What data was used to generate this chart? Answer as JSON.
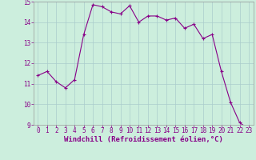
{
  "x": [
    0,
    1,
    2,
    3,
    4,
    5,
    6,
    7,
    8,
    9,
    10,
    11,
    12,
    13,
    14,
    15,
    16,
    17,
    18,
    19,
    20,
    21,
    22,
    23
  ],
  "y": [
    11.4,
    11.6,
    11.1,
    10.8,
    11.2,
    13.4,
    14.85,
    14.75,
    14.5,
    14.4,
    14.8,
    14.0,
    14.3,
    14.3,
    14.1,
    14.2,
    13.7,
    13.9,
    13.2,
    13.4,
    11.6,
    10.1,
    9.1,
    8.8
  ],
  "line_color": "#880088",
  "marker_color": "#880088",
  "bg_color": "#cceedd",
  "grid_color": "#aacccc",
  "xlabel": "Windchill (Refroidissement éolien,°C)",
  "xlabel_color": "#880088",
  "ylim": [
    9,
    15
  ],
  "xlim": [
    -0.5,
    23.5
  ],
  "yticks": [
    9,
    10,
    11,
    12,
    13,
    14,
    15
  ],
  "xticks": [
    0,
    1,
    2,
    3,
    4,
    5,
    6,
    7,
    8,
    9,
    10,
    11,
    12,
    13,
    14,
    15,
    16,
    17,
    18,
    19,
    20,
    21,
    22,
    23
  ],
  "tick_color": "#880088",
  "tick_fontsize": 5.5,
  "xlabel_fontsize": 6.5,
  "marker_size": 3,
  "line_width": 0.8
}
